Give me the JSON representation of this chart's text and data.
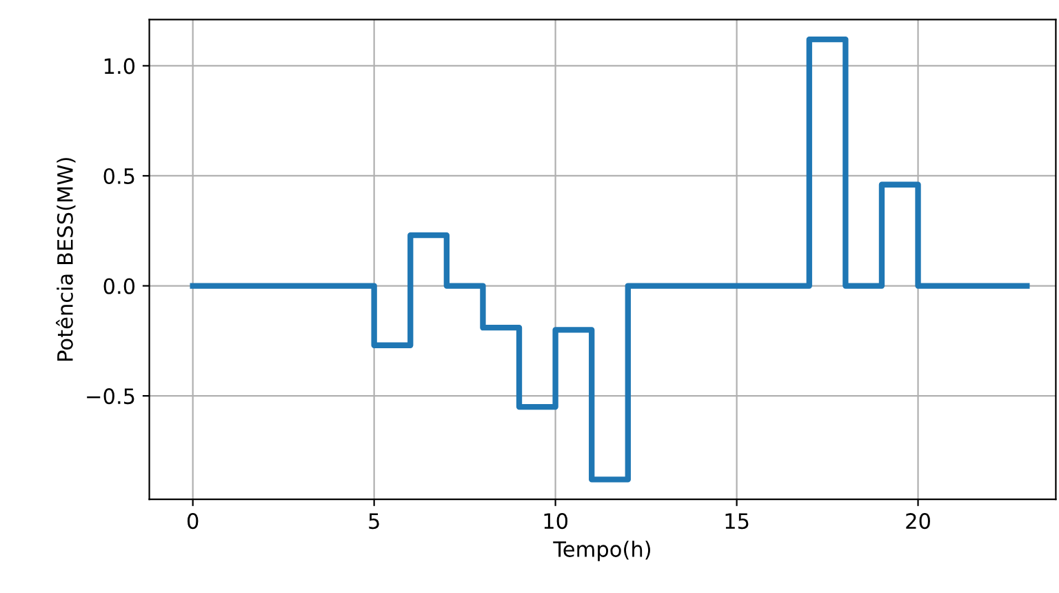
{
  "chart_data": {
    "type": "step",
    "xlabel": "Tempo(h)",
    "ylabel": "Potência BESS(MW)",
    "x": [
      0,
      1,
      2,
      3,
      4,
      5,
      6,
      7,
      8,
      9,
      10,
      11,
      12,
      13,
      14,
      15,
      16,
      17,
      18,
      19,
      20,
      21,
      22,
      23
    ],
    "series": [
      {
        "color": "#1f77b4",
        "values": [
          0,
          0,
          0,
          0,
          0,
          -0.27,
          0.23,
          0,
          -0.19,
          -0.55,
          -0.2,
          -0.88,
          0,
          0,
          0,
          0,
          0,
          1.12,
          0,
          0.46,
          0,
          0,
          0,
          0
        ]
      }
    ],
    "xlim": [
      -1.2,
      23.8
    ],
    "ylim": [
      -0.97,
      1.21
    ],
    "xticks": [
      0,
      5,
      10,
      15,
      20
    ],
    "yticks": [
      {
        "value": -0.5,
        "label": "−0.5"
      },
      {
        "value": 0,
        "label": "0.0"
      },
      {
        "value": 0.5,
        "label": "0.5"
      },
      {
        "value": 1.0,
        "label": "1.0"
      }
    ],
    "grid": true,
    "line_style": "solid",
    "marker": "none"
  }
}
